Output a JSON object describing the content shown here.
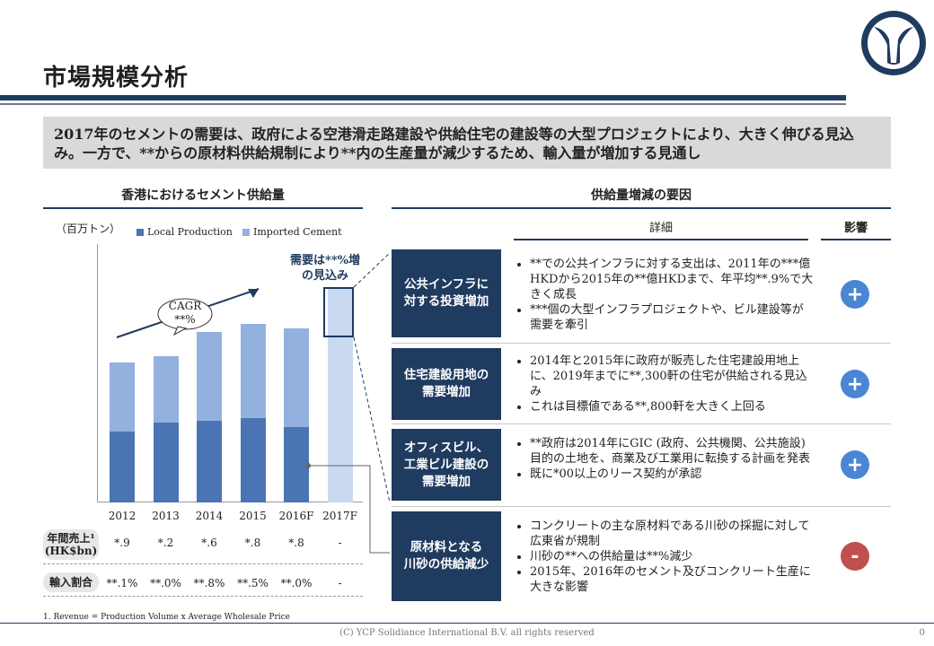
{
  "page": {
    "title": "市場規模分析",
    "summary": "2017年のセメントの需要は、政府による空港滑走路建設や供給住宅の建設等の大型プロジェクトにより、大きく伸びる見込み。一方で、**からの原材料供給規制により**内の生産量が減少するため、輸入量が増加する見通し",
    "footer": "(C) YCP Solidiance  International B.V. all rights reserved",
    "page_number": "0",
    "note": "1. Revenue = Production Volume x Average Wholesale Price"
  },
  "left": {
    "section_title": "香港におけるセメント供給量",
    "unit": "（百万トン）",
    "cagr_label": "CAGR\n**%",
    "callout": "需要は**%増\nの見込み",
    "row1_label": "年間売上¹\n(HK$bn)",
    "row2_label": "輸入割合",
    "row1_values": [
      "*.9",
      "*.2",
      "*.6",
      "*.8",
      "*.8",
      "-"
    ],
    "row2_values": [
      "**.1%",
      "**.0%",
      "**.8%",
      "**.5%",
      "**.0%",
      "-"
    ]
  },
  "chart_data": {
    "type": "bar",
    "stacked": true,
    "categories": [
      "2012",
      "2013",
      "2014",
      "2015",
      "2016F",
      "2017F"
    ],
    "series": [
      {
        "name": "Local Production",
        "color": "#4a74b4",
        "values": [
          0.33,
          0.37,
          0.38,
          0.39,
          0.35,
          0
        ]
      },
      {
        "name": "Imported Cement",
        "color": "#93b1df",
        "values": [
          0.32,
          0.31,
          0.41,
          0.44,
          0.46,
          0
        ]
      }
    ],
    "highlight_bar": {
      "category": "2017F",
      "total": 1.0,
      "color": "#c9d9f0"
    },
    "ylim": [
      0,
      1.2
    ],
    "gridlines": false
  },
  "right": {
    "section_title": "供給量増減の要因",
    "col_detail": "詳細",
    "col_impact": "影響",
    "factors": [
      {
        "label": "公共インフラに\n対する投資増加",
        "details": [
          "**での公共インフラに対する支出は、2011年の***億HKDから2015年の**億HKDまで、年平均**.9%で大きく成長",
          "***個の大型インフラプロジェクトや、ビル建設等が需要を牽引"
        ],
        "impact": "+",
        "impact_color": "#4a86d4"
      },
      {
        "label": "住宅建設用地の\n需要増加",
        "details": [
          "2014年と2015年に政府が販売した住宅建設用地上に、2019年までに**,300軒の住宅が供給される見込み",
          "これは目標値である**,800軒を大きく上回る"
        ],
        "impact": "+",
        "impact_color": "#4a86d4"
      },
      {
        "label": "オフィスビル、\n工業ビル建設の\n需要増加",
        "details": [
          "**政府は2014年にGIC (政府、公共機関、公共施設) 目的の土地を、商業及び工業用に転換する計画を発表",
          "既に*00以上のリース契約が承認"
        ],
        "impact": "+",
        "impact_color": "#4a86d4"
      },
      {
        "label": "原材料となる\n川砂の供給減少",
        "details": [
          "コンクリートの主な原材料である川砂の採掘に対して広東省が規制",
          "川砂の**への供給量は**%減少",
          "2015年、2016年のセメント及びコンクリート生産に大きな影響"
        ],
        "impact": "-",
        "impact_color": "#c0504d"
      }
    ]
  }
}
